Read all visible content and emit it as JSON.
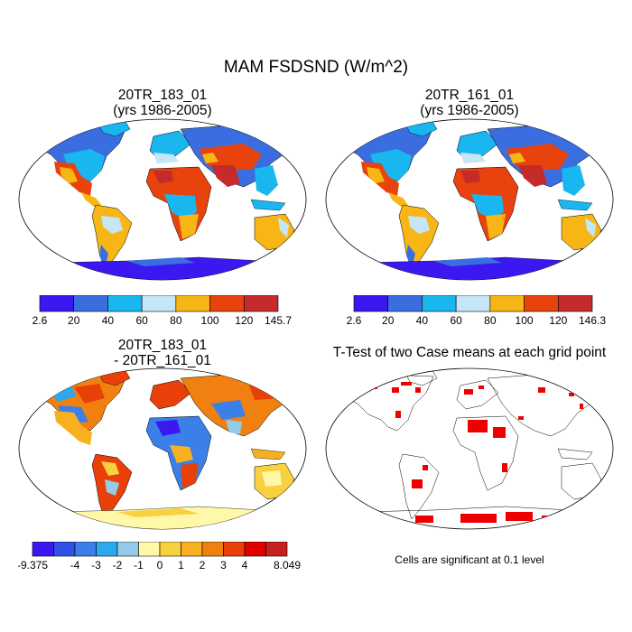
{
  "title": "MAM FSDSND (W/m^2)",
  "panels": {
    "top_left": {
      "line1": "20TR_183_01",
      "line2": "(yrs 1986-2005)"
    },
    "top_right": {
      "line1": "20TR_161_01",
      "line2": "(yrs 1986-2005)"
    },
    "bottom_left": {
      "line1": "20TR_183_01",
      "line2": "- 20TR_161_01"
    },
    "bottom_right": {
      "line1": "T-Test of two Case means at each grid point"
    }
  },
  "colorbars": {
    "top_left": {
      "colors": [
        "#3b17f0",
        "#3a6ee0",
        "#19b6f0",
        "#c4e6f5",
        "#f7b615",
        "#e8420d",
        "#c52b2b"
      ],
      "labels": [
        "2.6",
        "20",
        "40",
        "60",
        "80",
        "100",
        "120",
        "145.7"
      ]
    },
    "top_right": {
      "colors": [
        "#3b17f0",
        "#3a6ee0",
        "#19b6f0",
        "#c4e6f5",
        "#f7b615",
        "#e8420d",
        "#c52b2b"
      ],
      "labels": [
        "2.6",
        "20",
        "40",
        "60",
        "80",
        "100",
        "120",
        "146.3"
      ]
    },
    "diff": {
      "colors": [
        "#3b17f0",
        "#3050e8",
        "#3a80e8",
        "#2aa8f0",
        "#92cce8",
        "#fff8a8",
        "#f8d040",
        "#f8b020",
        "#f08010",
        "#e84008",
        "#e00000",
        "#c82020"
      ],
      "labels": [
        "-9.375",
        "",
        "-4",
        "-3",
        "-2",
        "-1",
        "0",
        "1",
        "2",
        "3",
        "4",
        "",
        "8.049"
      ]
    }
  },
  "note": "Cells are significant at 0.1 level"
}
